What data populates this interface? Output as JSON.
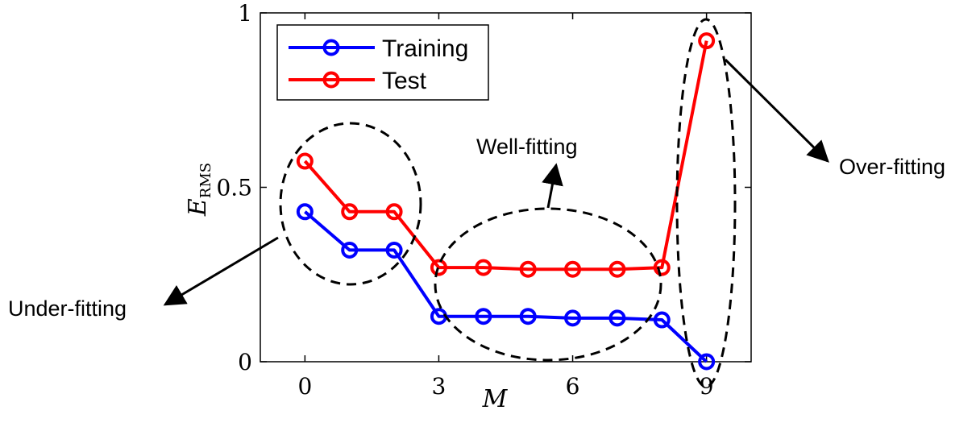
{
  "chart_data": {
    "type": "line",
    "x": [
      0,
      1,
      2,
      3,
      4,
      5,
      6,
      7,
      8,
      9
    ],
    "series": [
      {
        "name": "Training",
        "color": "#0000ff",
        "values": [
          0.43,
          0.32,
          0.32,
          0.13,
          0.13,
          0.13,
          0.125,
          0.125,
          0.12,
          0.0
        ]
      },
      {
        "name": "Test",
        "color": "#ff0000",
        "values": [
          0.575,
          0.43,
          0.43,
          0.27,
          0.27,
          0.265,
          0.265,
          0.265,
          0.27,
          0.92
        ]
      }
    ],
    "xlim": [
      -1.0,
      10.0
    ],
    "ylim": [
      0,
      1
    ],
    "xticks": [
      0,
      3,
      6,
      9
    ],
    "yticks": [
      0,
      0.5,
      1
    ],
    "xtick_labels": [
      "0",
      "3",
      "6",
      "9"
    ],
    "ytick_labels": [
      "0",
      "0.5",
      "1"
    ],
    "xlabel": "M",
    "ylabel_main": "E",
    "ylabel_sub": "RMS",
    "grid": false,
    "legend_position": "top-left",
    "annotations": [
      {
        "id": "under",
        "label": "Under-fitting"
      },
      {
        "id": "well",
        "label": "Well-fitting"
      },
      {
        "id": "over",
        "label": "Over-fitting"
      }
    ]
  }
}
